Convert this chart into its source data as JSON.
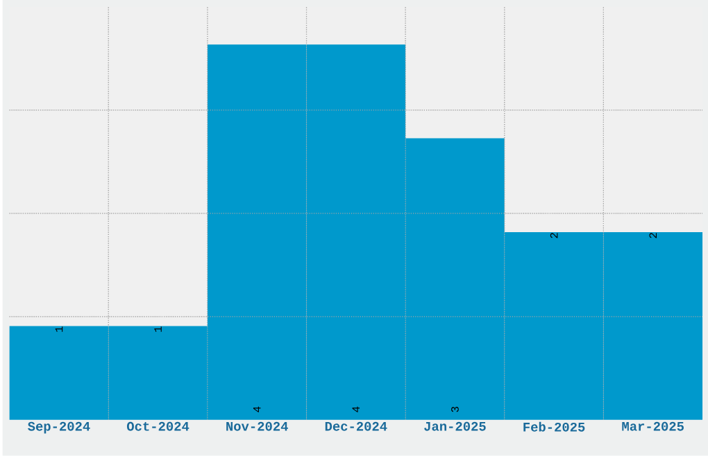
{
  "chart_data": {
    "type": "bar",
    "categories": [
      "Sep-2024",
      "Oct-2024",
      "Nov-2024",
      "Dec-2024",
      "Jan-2025",
      "Feb-2025",
      "Mar-2025"
    ],
    "values": [
      1,
      1,
      4,
      4,
      3,
      2,
      2
    ],
    "color": "#0099cc",
    "ylim": [
      0,
      4.4
    ],
    "yticks": [
      {
        "value": 1.1,
        "label": null
      },
      {
        "value": 2.2,
        "label": null
      },
      {
        "value": 3.3,
        "label": null
      }
    ],
    "tick_labels": "x",
    "grid": true,
    "data_labels": true
  }
}
